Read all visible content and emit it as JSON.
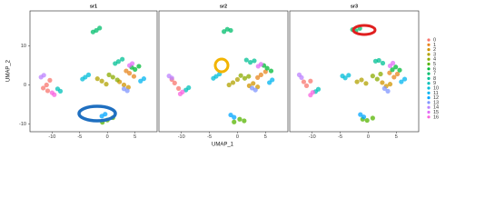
{
  "chart_data": {
    "type": "scatter",
    "xlabel": "UMAP_1",
    "ylabel": "UMAP_2",
    "xlim": [
      -14,
      9
    ],
    "ylim": [
      -12,
      19
    ],
    "xticks": [
      -10,
      -5,
      0,
      5
    ],
    "yticks": [
      -10,
      0,
      10
    ],
    "panel_titles": [
      "sr1",
      "sr2",
      "sr3"
    ],
    "series": [
      {
        "name": "0",
        "color": "#F8766D",
        "panels": [
          {
            "x": [
              -11,
              -10.4,
              -11.6,
              -10.8
            ],
            "y": [
              0,
              1.2,
              -0.8,
              -1.5
            ]
          },
          {
            "x": [
              -11.2,
              -10.5,
              -11.7
            ],
            "y": [
              0.5,
              -0.9,
              1.4
            ]
          },
          {
            "x": [
              -11,
              -10.3,
              -11.5
            ],
            "y": [
              -0.2,
              1,
              0.8
            ]
          }
        ]
      },
      {
        "name": "1",
        "color": "#E7851E",
        "panels": [
          {
            "x": [
              4,
              4.8,
              3.4
            ],
            "y": [
              3,
              2.2,
              3.6
            ]
          },
          {
            "x": [
              4.2,
              5,
              3.6
            ],
            "y": [
              2.6,
              3.4,
              1.9
            ]
          },
          {
            "x": [
              3.8,
              4.6,
              5.2
            ],
            "y": [
              3.1,
              2,
              2.8
            ]
          }
        ]
      },
      {
        "name": "2",
        "color": "#D09400",
        "panels": [
          {
            "x": [
              3,
              2.2,
              3.8
            ],
            "y": [
              0,
              0.8,
              -0.6
            ]
          },
          {
            "x": [
              2.8,
              3.6,
              2.1
            ],
            "y": [
              0.4,
              -0.5,
              -0.2
            ]
          },
          {
            "x": [
              3.2,
              2.5,
              3.9
            ],
            "y": [
              -0.3,
              0.6,
              0.2
            ]
          }
        ]
      },
      {
        "name": "3",
        "color": "#B2A100",
        "panels": [
          {
            "x": [
              -1,
              -0.2,
              -1.8
            ],
            "y": [
              1,
              0.2,
              1.6
            ]
          },
          {
            "x": [
              -0.8,
              0,
              -1.5
            ],
            "y": [
              0.6,
              1.4,
              0
            ]
          },
          {
            "x": [
              -1.2,
              -0.4,
              -2
            ],
            "y": [
              1.3,
              0.4,
              0.8
            ]
          }
        ]
      },
      {
        "name": "4",
        "color": "#8BAB00",
        "panels": [
          {
            "x": [
              1,
              1.8,
              0.3
            ],
            "y": [
              2,
              1.3,
              2.6
            ]
          },
          {
            "x": [
              1.3,
              0.6,
              2
            ],
            "y": [
              1.7,
              2.4,
              2.2
            ]
          },
          {
            "x": [
              0.8,
              1.6,
              2.2
            ],
            "y": [
              2.3,
              1.5,
              2.8
            ]
          }
        ]
      },
      {
        "name": "5",
        "color": "#55B400",
        "panels": [
          {
            "x": [
              0,
              1,
              -0.9
            ],
            "y": [
              -9,
              -8.4,
              -9.6
            ]
          },
          {
            "x": [
              0.4,
              -0.6,
              1.2
            ],
            "y": [
              -8.8,
              -9.5,
              -9.2
            ]
          },
          {
            "x": [
              -0.2,
              0.8,
              -1
            ],
            "y": [
              -9.1,
              -8.5,
              -8.8
            ]
          }
        ]
      },
      {
        "name": "6",
        "color": "#00BA38",
        "panels": [
          {
            "x": [
              5,
              5.7,
              4.4
            ],
            "y": [
              4,
              4.8,
              4.5
            ]
          },
          {
            "x": [
              5.3,
              4.7,
              6
            ],
            "y": [
              4.3,
              5,
              3.6
            ]
          },
          {
            "x": [
              4.9,
              5.6,
              4.3
            ],
            "y": [
              4.6,
              3.8,
              3.9
            ]
          }
        ]
      },
      {
        "name": "7",
        "color": "#00BE6C",
        "panels": [
          {
            "x": [
              -2,
              -1.4,
              -2.6
            ],
            "y": [
              14,
              14.6,
              13.6
            ]
          },
          {
            "x": [
              -1.8,
              -2.4,
              -1.2
            ],
            "y": [
              14.3,
              13.7,
              14
            ]
          },
          {
            "x": [
              -2.2,
              -1.5,
              -2.8
            ],
            "y": [
              13.9,
              14.5,
              14.2
            ]
          }
        ]
      },
      {
        "name": "8",
        "color": "#00C094",
        "panels": [
          {
            "x": [
              2,
              2.7,
              1.4
            ],
            "y": [
              6,
              6.6,
              5.5
            ]
          },
          {
            "x": [
              2.3,
              1.6,
              3
            ],
            "y": [
              5.8,
              6.4,
              6.2
            ]
          },
          {
            "x": [
              1.9,
              2.6,
              1.3
            ],
            "y": [
              6.3,
              5.6,
              6.1
            ]
          }
        ]
      },
      {
        "name": "9",
        "color": "#00C0B8",
        "panels": [
          {
            "x": [
              -9,
              -8.5
            ],
            "y": [
              -1,
              -1.6
            ]
          },
          {
            "x": [
              -9.2,
              -8.7
            ],
            "y": [
              -1.3,
              -0.7
            ]
          },
          {
            "x": [
              -8.9,
              -9.4
            ],
            "y": [
              -1.1,
              -1.7
            ]
          }
        ]
      },
      {
        "name": "10",
        "color": "#00BCD8",
        "panels": [
          {
            "x": [
              -4,
              -3.4,
              -4.5
            ],
            "y": [
              2,
              2.6,
              1.5
            ]
          },
          {
            "x": [
              -3.8,
              -4.3,
              -3.2
            ],
            "y": [
              2.2,
              1.7,
              2.8
            ]
          },
          {
            "x": [
              -4.1,
              -3.5,
              -4.6
            ],
            "y": [
              1.8,
              2.5,
              2.3
            ]
          }
        ]
      },
      {
        "name": "11",
        "color": "#00B4F0",
        "panels": [
          {
            "x": [
              6,
              6.6
            ],
            "y": [
              1,
              1.6
            ]
          },
          {
            "x": [
              6.2,
              5.7
            ],
            "y": [
              1.3,
              0.6
            ]
          },
          {
            "x": [
              5.9,
              6.5
            ],
            "y": [
              0.8,
              1.5
            ]
          }
        ]
      },
      {
        "name": "12",
        "color": "#00A5FF",
        "panels": [
          {
            "x": [
              -1,
              -0.4
            ],
            "y": [
              -8,
              -7.5
            ]
          },
          {
            "x": [
              -1.2,
              -0.6
            ],
            "y": [
              -7.7,
              -8.3
            ]
          },
          {
            "x": [
              -0.8,
              -1.4
            ],
            "y": [
              -8.2,
              -7.6
            ]
          }
        ]
      },
      {
        "name": "13",
        "color": "#7F96FF",
        "panels": [
          {
            "x": [
              3,
              3.6
            ],
            "y": [
              -1,
              -1.5
            ]
          },
          {
            "x": [
              3.2,
              2.6
            ],
            "y": [
              -1.3,
              -0.8
            ]
          },
          {
            "x": [
              2.9,
              3.5
            ],
            "y": [
              -0.9,
              -1.6
            ]
          }
        ]
      },
      {
        "name": "14",
        "color": "#BC81FF",
        "panels": [
          {
            "x": [
              -12,
              -11.5
            ],
            "y": [
              2,
              2.5
            ]
          },
          {
            "x": [
              -12.2,
              -11.7
            ],
            "y": [
              2.3,
              1.8
            ]
          },
          {
            "x": [
              -11.9,
              -12.3
            ],
            "y": [
              1.9,
              2.6
            ]
          }
        ]
      },
      {
        "name": "15",
        "color": "#E26EF7",
        "panels": [
          {
            "x": [
              4,
              4.5
            ],
            "y": [
              5,
              5.5
            ]
          },
          {
            "x": [
              4.2,
              3.7
            ],
            "y": [
              5.3,
              4.8
            ]
          },
          {
            "x": [
              3.9,
              4.4
            ],
            "y": [
              4.9,
              5.6
            ]
          }
        ]
      },
      {
        "name": "16",
        "color": "#F863DF",
        "panels": [
          {
            "x": [
              -10,
              -9.6
            ],
            "y": [
              -2,
              -2.5
            ]
          },
          {
            "x": [
              -10.2,
              -9.8
            ],
            "y": [
              -2.3,
              -1.8
            ]
          },
          {
            "x": [
              -9.9,
              -10.3
            ],
            "y": [
              -1.9,
              -2.6
            ]
          }
        ]
      }
    ]
  }
}
